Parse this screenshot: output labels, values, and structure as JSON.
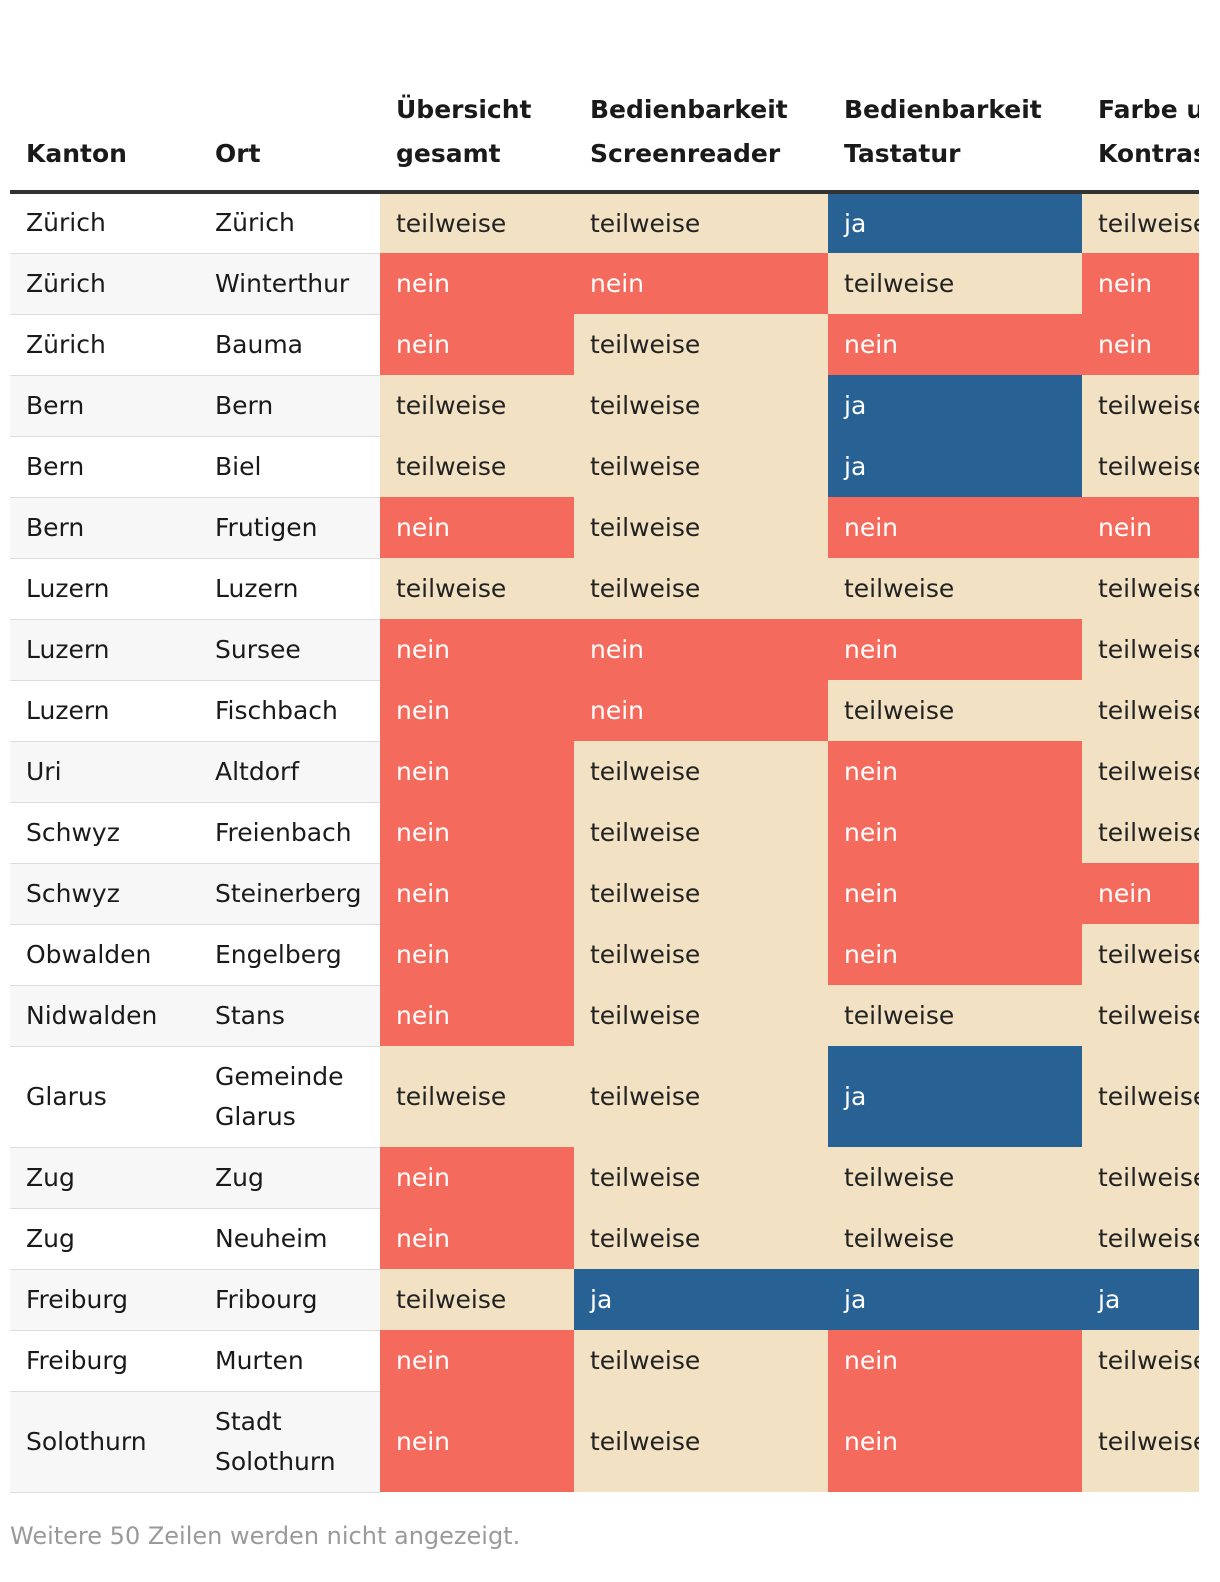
{
  "table": {
    "headers": [
      "Kanton",
      "Ort",
      "Übersicht gesamt",
      "Bedienbarkeit Screenreader",
      "Bedienbarkeit Tastatur",
      "Farbe und Kontrast"
    ],
    "rows": [
      {
        "kanton": "Zürich",
        "ort": "Zürich",
        "v": [
          "teilweise",
          "teilweise",
          "ja",
          "teilweise"
        ]
      },
      {
        "kanton": "Zürich",
        "ort": "Winterthur",
        "v": [
          "nein",
          "nein",
          "teilweise",
          "nein"
        ]
      },
      {
        "kanton": "Zürich",
        "ort": "Bauma",
        "v": [
          "nein",
          "teilweise",
          "nein",
          "nein"
        ]
      },
      {
        "kanton": "Bern",
        "ort": "Bern",
        "v": [
          "teilweise",
          "teilweise",
          "ja",
          "teilweise"
        ]
      },
      {
        "kanton": "Bern",
        "ort": "Biel",
        "v": [
          "teilweise",
          "teilweise",
          "ja",
          "teilweise"
        ]
      },
      {
        "kanton": "Bern",
        "ort": "Frutigen",
        "v": [
          "nein",
          "teilweise",
          "nein",
          "nein"
        ]
      },
      {
        "kanton": "Luzern",
        "ort": "Luzern",
        "v": [
          "teilweise",
          "teilweise",
          "teilweise",
          "teilweise"
        ]
      },
      {
        "kanton": "Luzern",
        "ort": "Sursee",
        "v": [
          "nein",
          "nein",
          "nein",
          "teilweise"
        ]
      },
      {
        "kanton": "Luzern",
        "ort": "Fischbach",
        "v": [
          "nein",
          "nein",
          "teilweise",
          "teilweise"
        ]
      },
      {
        "kanton": "Uri",
        "ort": "Altdorf",
        "v": [
          "nein",
          "teilweise",
          "nein",
          "teilweise"
        ]
      },
      {
        "kanton": "Schwyz",
        "ort": "Freienbach",
        "v": [
          "nein",
          "teilweise",
          "nein",
          "teilweise"
        ]
      },
      {
        "kanton": "Schwyz",
        "ort": "Steinerberg",
        "v": [
          "nein",
          "teilweise",
          "nein",
          "nein"
        ]
      },
      {
        "kanton": "Obwalden",
        "ort": "Engelberg",
        "v": [
          "nein",
          "teilweise",
          "nein",
          "teilweise"
        ]
      },
      {
        "kanton": "Nidwalden",
        "ort": "Stans",
        "v": [
          "nein",
          "teilweise",
          "teilweise",
          "teilweise"
        ]
      },
      {
        "kanton": "Glarus",
        "ort": "Gemeinde Glarus",
        "v": [
          "teilweise",
          "teilweise",
          "ja",
          "teilweise"
        ]
      },
      {
        "kanton": "Zug",
        "ort": "Zug",
        "v": [
          "nein",
          "teilweise",
          "teilweise",
          "teilweise"
        ]
      },
      {
        "kanton": "Zug",
        "ort": "Neuheim",
        "v": [
          "nein",
          "teilweise",
          "teilweise",
          "teilweise"
        ]
      },
      {
        "kanton": "Freiburg",
        "ort": "Fribourg",
        "v": [
          "teilweise",
          "ja",
          "ja",
          "ja"
        ]
      },
      {
        "kanton": "Freiburg",
        "ort": "Murten",
        "v": [
          "nein",
          "teilweise",
          "nein",
          "teilweise"
        ]
      },
      {
        "kanton": "Solothurn",
        "ort": "Stadt Solothurn",
        "v": [
          "nein",
          "teilweise",
          "nein",
          "teilweise"
        ]
      }
    ]
  },
  "colors": {
    "teilweise": "#f2e2c3",
    "nein": "#f46a5d",
    "ja": "#286194"
  },
  "footer": {
    "note": "Weitere 50 Zeilen werden nicht angezeigt."
  }
}
